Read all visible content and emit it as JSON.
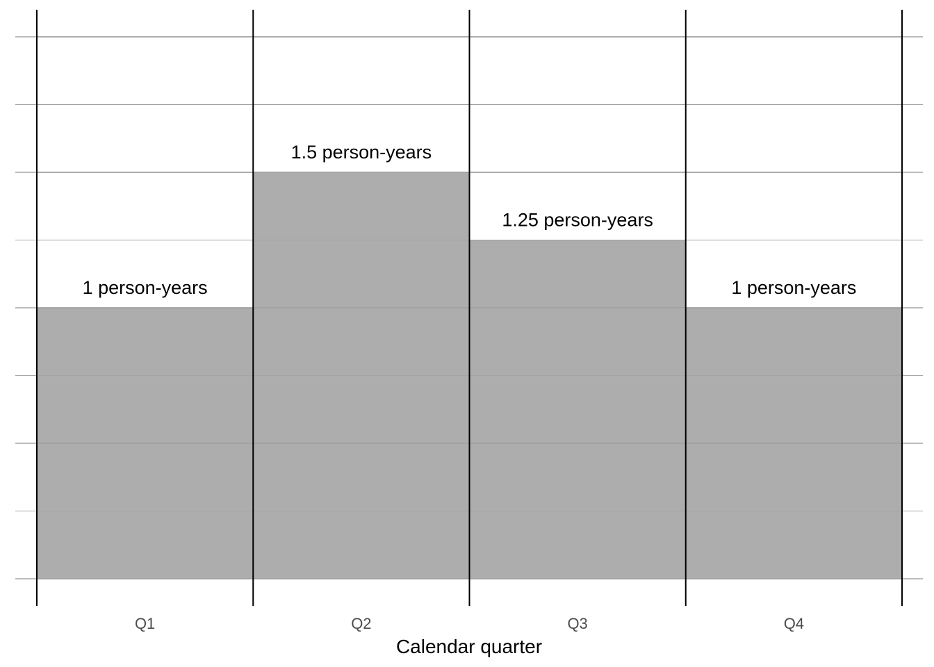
{
  "chart_data": {
    "type": "bar",
    "categories": [
      "Q1",
      "Q2",
      "Q3",
      "Q4"
    ],
    "values": [
      1,
      1.5,
      1.25,
      1
    ],
    "data_labels": [
      "1 person-years",
      "1.5 person-years",
      "1.25 person-years",
      "1 person-years"
    ],
    "xlabel": "Calendar quarter",
    "ylabel": "",
    "ylim": [
      0,
      2
    ],
    "grid": true,
    "legend": "none",
    "colors": {
      "bar": "#adadad",
      "grid": "#a6a6a6",
      "separator": "#000000",
      "tick_text": "#4d4d4d"
    }
  }
}
